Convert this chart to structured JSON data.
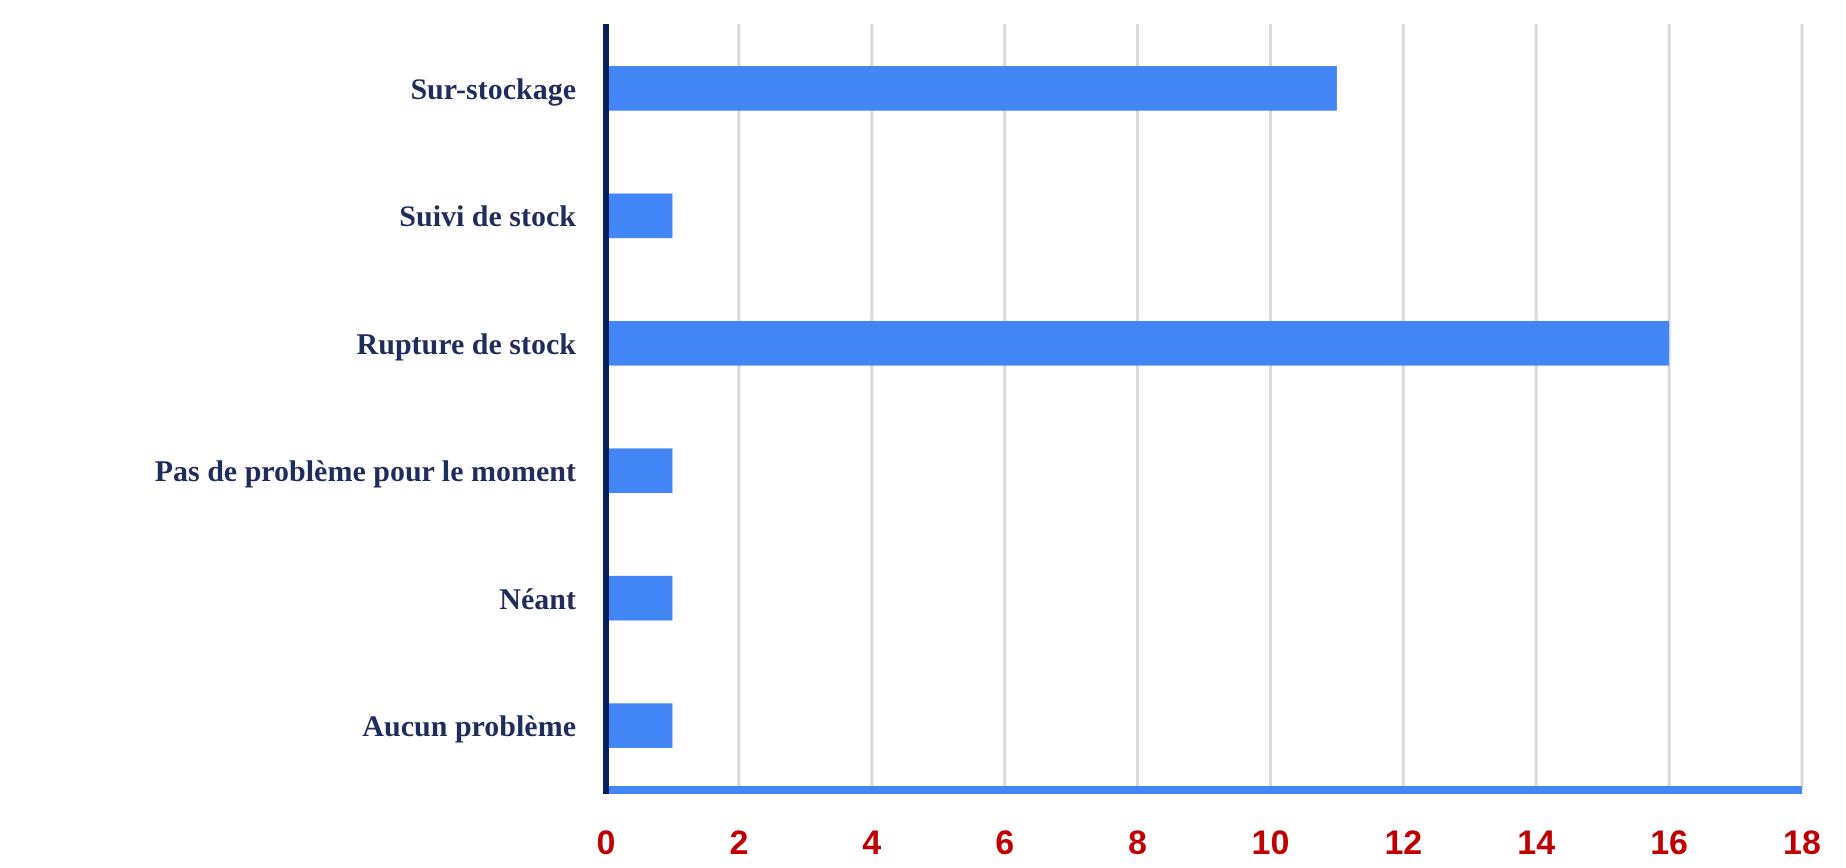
{
  "chart_data": {
    "type": "bar",
    "orientation": "horizontal",
    "categories": [
      "Sur-stockage",
      "Suivi de stock",
      "Rupture de stock",
      "Pas de problème pour le moment",
      "Néant",
      "Aucun problème"
    ],
    "values": [
      11,
      1,
      16,
      1,
      1,
      1
    ],
    "color": "#4285f4",
    "xlim": [
      0,
      18
    ],
    "xticks": [
      0,
      2,
      4,
      6,
      8,
      10,
      12,
      14,
      16,
      18
    ],
    "grid": "x"
  }
}
